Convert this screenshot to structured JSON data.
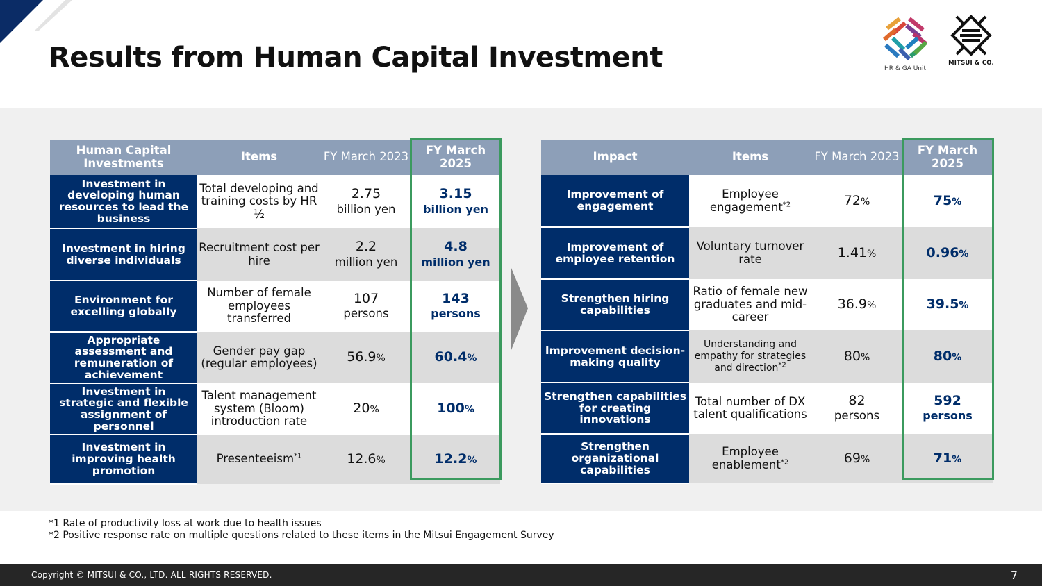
{
  "title": "Results from Human Capital Investment",
  "logos": {
    "hr_ga_unit": "HR & GA Unit",
    "mitsui": "MITSUI & CO."
  },
  "colors": {
    "navy": "#002d6a",
    "header_blue_gray": "#8d9fb8",
    "highlight_green": "#3b9a5e",
    "band_gray": "#f0f0f0",
    "footer_dark": "#262626"
  },
  "left_table": {
    "headers": [
      "Human Capital Investments",
      "Items",
      "FY March 2023",
      "FY March 2025"
    ],
    "rows": [
      {
        "category": "Investment in developing human resources to lead the business",
        "item": "Total developing and training costs by HR ½",
        "fy2023": "2.75",
        "fy2023_unit": "billion yen",
        "fy2025": "3.15",
        "fy2025_unit": "billion yen"
      },
      {
        "category": "Investment in hiring diverse individuals",
        "item": "Recruitment cost per hire",
        "fy2023": "2.2",
        "fy2023_unit": "million yen",
        "fy2025": "4.8",
        "fy2025_unit": "million yen"
      },
      {
        "category": "Environment for excelling globally",
        "item": "Number of female employees transferred",
        "fy2023": "107",
        "fy2023_unit": "persons",
        "fy2025": "143",
        "fy2025_unit": "persons"
      },
      {
        "category": "Appropriate assessment and remuneration of achievement",
        "item": "Gender pay gap (regular employees)",
        "fy2023": "56.9",
        "fy2023_unit": "%",
        "fy2025": "60.4",
        "fy2025_unit": "%"
      },
      {
        "category": "Investment in strategic and flexible assignment of personnel",
        "item": "Talent management system (Bloom) introduction rate",
        "fy2023": "20",
        "fy2023_unit": "%",
        "fy2025": "100",
        "fy2025_unit": "%"
      },
      {
        "category": "Investment in improving health promotion",
        "item": "Presenteeism",
        "item_note": "*1",
        "fy2023": "12.6",
        "fy2023_unit": "%",
        "fy2025": "12.2",
        "fy2025_unit": "%"
      }
    ]
  },
  "right_table": {
    "headers": [
      "Impact",
      "Items",
      "FY March 2023",
      "FY March 2025"
    ],
    "rows": [
      {
        "category": "Improvement of engagement",
        "item": "Employee engagement",
        "item_note": "*2",
        "fy2023": "72",
        "fy2023_unit": "%",
        "fy2025": "75",
        "fy2025_unit": "%"
      },
      {
        "category": "Improvement of employee retention",
        "item": "Voluntary turnover rate",
        "fy2023": "1.41",
        "fy2023_unit": "%",
        "fy2025": "0.96",
        "fy2025_unit": "%"
      },
      {
        "category": "Strengthen hiring capabilities",
        "item": "Ratio of female new graduates and mid-career",
        "fy2023": "36.9",
        "fy2023_unit": "%",
        "fy2025": "39.5",
        "fy2025_unit": "%"
      },
      {
        "category": "Improvement decision-making quality",
        "item": "Understanding and empathy for strategies and direction",
        "item_note": "*2",
        "fy2023": "80",
        "fy2023_unit": "%",
        "fy2025": "80",
        "fy2025_unit": "%"
      },
      {
        "category": "Strengthen capabilities for creating innovations",
        "item": "Total number of DX talent qualifications",
        "fy2023": "82",
        "fy2023_unit": "persons",
        "fy2025": "592",
        "fy2025_unit": "persons"
      },
      {
        "category": "Strengthen organizational capabilities",
        "item": "Employee enablement",
        "item_note": "*2",
        "fy2023": "69",
        "fy2023_unit": "%",
        "fy2025": "71",
        "fy2025_unit": "%"
      }
    ]
  },
  "footnotes": [
    "*1 Rate of productivity loss at work due to health issues",
    "*2 Positive response rate on multiple questions related to these items in the Mitsui Engagement Survey"
  ],
  "footer": {
    "copyright": "Copyright © MITSUI & CO., LTD. ALL RIGHTS RESERVED.",
    "page_number": "7"
  }
}
